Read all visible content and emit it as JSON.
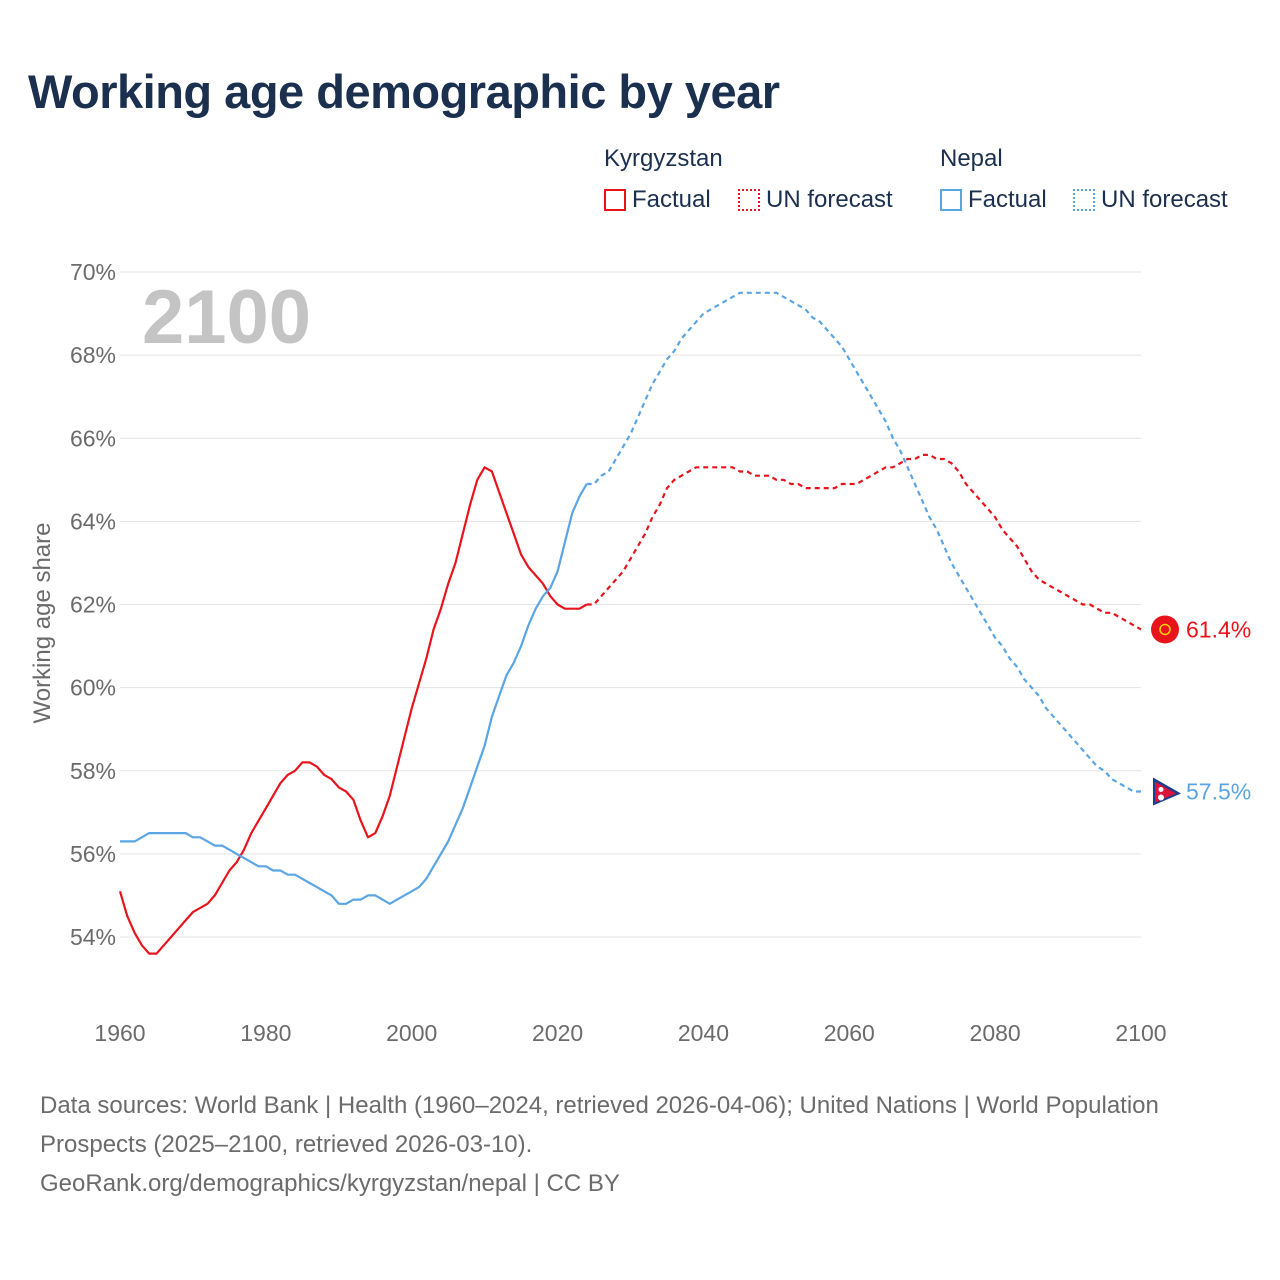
{
  "title": "Working age demographic by year",
  "legend": {
    "groups": [
      {
        "name": "Kyrgyzstan",
        "factual": "Factual",
        "forecast": "UN forecast",
        "color": "#e8141c"
      },
      {
        "name": "Nepal",
        "factual": "Factual",
        "forecast": "UN forecast",
        "color": "#5aa5e3"
      }
    ]
  },
  "year_watermark": "2100",
  "footer": {
    "sources": "Data sources: World Bank | Health (1960–2024, retrieved 2026-04-06); United Nations | World Population Prospects (2025–2100, retrieved 2026-03-10).",
    "credit": "GeoRank.org/demographics/kyrgyzstan/nepal | CC BY"
  },
  "chart_data": {
    "type": "line",
    "title": "Working age demographic by year",
    "xlabel": "",
    "ylabel": "Working age share",
    "xlim": [
      1960,
      2100
    ],
    "ylim": [
      53,
      70
    ],
    "x_ticks": [
      1960,
      1980,
      2000,
      2020,
      2040,
      2060,
      2080,
      2100
    ],
    "x_tick_labels": [
      "1960",
      "1980",
      "2000",
      "2020",
      "2040",
      "2060",
      "2080",
      "2100"
    ],
    "y_ticks": [
      54,
      56,
      58,
      60,
      62,
      64,
      66,
      68,
      70
    ],
    "y_tick_labels": [
      "54%",
      "56%",
      "58%",
      "60%",
      "62%",
      "64%",
      "66%",
      "68%",
      "70%"
    ],
    "grid": true,
    "factual_end_year": 2024,
    "series": [
      {
        "name": "Kyrgyzstan",
        "color": "#e8141c",
        "end_label": "61.4%",
        "points": [
          [
            1960,
            55.1
          ],
          [
            1961,
            54.5
          ],
          [
            1962,
            54.1
          ],
          [
            1963,
            53.8
          ],
          [
            1964,
            53.6
          ],
          [
            1965,
            53.6
          ],
          [
            1966,
            53.8
          ],
          [
            1967,
            54.0
          ],
          [
            1968,
            54.2
          ],
          [
            1969,
            54.4
          ],
          [
            1970,
            54.6
          ],
          [
            1971,
            54.7
          ],
          [
            1972,
            54.8
          ],
          [
            1973,
            55.0
          ],
          [
            1974,
            55.3
          ],
          [
            1975,
            55.6
          ],
          [
            1976,
            55.8
          ],
          [
            1977,
            56.1
          ],
          [
            1978,
            56.5
          ],
          [
            1979,
            56.8
          ],
          [
            1980,
            57.1
          ],
          [
            1981,
            57.4
          ],
          [
            1982,
            57.7
          ],
          [
            1983,
            57.9
          ],
          [
            1984,
            58.0
          ],
          [
            1985,
            58.2
          ],
          [
            1986,
            58.2
          ],
          [
            1987,
            58.1
          ],
          [
            1988,
            57.9
          ],
          [
            1989,
            57.8
          ],
          [
            1990,
            57.6
          ],
          [
            1991,
            57.5
          ],
          [
            1992,
            57.3
          ],
          [
            1993,
            56.8
          ],
          [
            1994,
            56.4
          ],
          [
            1995,
            56.5
          ],
          [
            1996,
            56.9
          ],
          [
            1997,
            57.4
          ],
          [
            1998,
            58.1
          ],
          [
            1999,
            58.8
          ],
          [
            2000,
            59.5
          ],
          [
            2001,
            60.1
          ],
          [
            2002,
            60.7
          ],
          [
            2003,
            61.4
          ],
          [
            2004,
            61.9
          ],
          [
            2005,
            62.5
          ],
          [
            2006,
            63.0
          ],
          [
            2007,
            63.7
          ],
          [
            2008,
            64.4
          ],
          [
            2009,
            65.0
          ],
          [
            2010,
            65.3
          ],
          [
            2011,
            65.2
          ],
          [
            2012,
            64.7
          ],
          [
            2013,
            64.2
          ],
          [
            2014,
            63.7
          ],
          [
            2015,
            63.2
          ],
          [
            2016,
            62.9
          ],
          [
            2017,
            62.7
          ],
          [
            2018,
            62.5
          ],
          [
            2019,
            62.2
          ],
          [
            2020,
            62.0
          ],
          [
            2021,
            61.9
          ],
          [
            2022,
            61.9
          ],
          [
            2023,
            61.9
          ],
          [
            2024,
            62.0
          ],
          [
            2025,
            62.0
          ],
          [
            2026,
            62.2
          ],
          [
            2027,
            62.4
          ],
          [
            2028,
            62.6
          ],
          [
            2029,
            62.8
          ],
          [
            2030,
            63.1
          ],
          [
            2031,
            63.4
          ],
          [
            2032,
            63.7
          ],
          [
            2033,
            64.1
          ],
          [
            2034,
            64.4
          ],
          [
            2035,
            64.8
          ],
          [
            2036,
            65.0
          ],
          [
            2037,
            65.1
          ],
          [
            2038,
            65.2
          ],
          [
            2039,
            65.3
          ],
          [
            2040,
            65.3
          ],
          [
            2041,
            65.3
          ],
          [
            2042,
            65.3
          ],
          [
            2043,
            65.3
          ],
          [
            2044,
            65.3
          ],
          [
            2045,
            65.2
          ],
          [
            2046,
            65.2
          ],
          [
            2047,
            65.1
          ],
          [
            2048,
            65.1
          ],
          [
            2049,
            65.1
          ],
          [
            2050,
            65.0
          ],
          [
            2051,
            65.0
          ],
          [
            2052,
            64.9
          ],
          [
            2053,
            64.9
          ],
          [
            2054,
            64.8
          ],
          [
            2055,
            64.8
          ],
          [
            2056,
            64.8
          ],
          [
            2057,
            64.8
          ],
          [
            2058,
            64.8
          ],
          [
            2059,
            64.9
          ],
          [
            2060,
            64.9
          ],
          [
            2061,
            64.9
          ],
          [
            2062,
            65.0
          ],
          [
            2063,
            65.1
          ],
          [
            2064,
            65.2
          ],
          [
            2065,
            65.3
          ],
          [
            2066,
            65.3
          ],
          [
            2067,
            65.4
          ],
          [
            2068,
            65.5
          ],
          [
            2069,
            65.5
          ],
          [
            2070,
            65.6
          ],
          [
            2071,
            65.6
          ],
          [
            2072,
            65.5
          ],
          [
            2073,
            65.5
          ],
          [
            2074,
            65.4
          ],
          [
            2075,
            65.2
          ],
          [
            2076,
            64.9
          ],
          [
            2077,
            64.7
          ],
          [
            2078,
            64.5
          ],
          [
            2079,
            64.3
          ],
          [
            2080,
            64.1
          ],
          [
            2081,
            63.8
          ],
          [
            2082,
            63.6
          ],
          [
            2083,
            63.4
          ],
          [
            2084,
            63.1
          ],
          [
            2085,
            62.8
          ],
          [
            2086,
            62.6
          ],
          [
            2087,
            62.5
          ],
          [
            2088,
            62.4
          ],
          [
            2089,
            62.3
          ],
          [
            2090,
            62.2
          ],
          [
            2091,
            62.1
          ],
          [
            2092,
            62.0
          ],
          [
            2093,
            62.0
          ],
          [
            2094,
            61.9
          ],
          [
            2095,
            61.8
          ],
          [
            2096,
            61.8
          ],
          [
            2097,
            61.7
          ],
          [
            2098,
            61.6
          ],
          [
            2099,
            61.5
          ],
          [
            2100,
            61.4
          ]
        ]
      },
      {
        "name": "Nepal",
        "color": "#5aa5e3",
        "end_label": "57.5%",
        "points": [
          [
            1960,
            56.3
          ],
          [
            1961,
            56.3
          ],
          [
            1962,
            56.3
          ],
          [
            1963,
            56.4
          ],
          [
            1964,
            56.5
          ],
          [
            1965,
            56.5
          ],
          [
            1966,
            56.5
          ],
          [
            1967,
            56.5
          ],
          [
            1968,
            56.5
          ],
          [
            1969,
            56.5
          ],
          [
            1970,
            56.4
          ],
          [
            1971,
            56.4
          ],
          [
            1972,
            56.3
          ],
          [
            1973,
            56.2
          ],
          [
            1974,
            56.2
          ],
          [
            1975,
            56.1
          ],
          [
            1976,
            56.0
          ],
          [
            1977,
            55.9
          ],
          [
            1978,
            55.8
          ],
          [
            1979,
            55.7
          ],
          [
            1980,
            55.7
          ],
          [
            1981,
            55.6
          ],
          [
            1982,
            55.6
          ],
          [
            1983,
            55.5
          ],
          [
            1984,
            55.5
          ],
          [
            1985,
            55.4
          ],
          [
            1986,
            55.3
          ],
          [
            1987,
            55.2
          ],
          [
            1988,
            55.1
          ],
          [
            1989,
            55.0
          ],
          [
            1990,
            54.8
          ],
          [
            1991,
            54.8
          ],
          [
            1992,
            54.9
          ],
          [
            1993,
            54.9
          ],
          [
            1994,
            55.0
          ],
          [
            1995,
            55.0
          ],
          [
            1996,
            54.9
          ],
          [
            1997,
            54.8
          ],
          [
            1998,
            54.9
          ],
          [
            1999,
            55.0
          ],
          [
            2000,
            55.1
          ],
          [
            2001,
            55.2
          ],
          [
            2002,
            55.4
          ],
          [
            2003,
            55.7
          ],
          [
            2004,
            56.0
          ],
          [
            2005,
            56.3
          ],
          [
            2006,
            56.7
          ],
          [
            2007,
            57.1
          ],
          [
            2008,
            57.6
          ],
          [
            2009,
            58.1
          ],
          [
            2010,
            58.6
          ],
          [
            2011,
            59.3
          ],
          [
            2012,
            59.8
          ],
          [
            2013,
            60.3
          ],
          [
            2014,
            60.6
          ],
          [
            2015,
            61.0
          ],
          [
            2016,
            61.5
          ],
          [
            2017,
            61.9
          ],
          [
            2018,
            62.2
          ],
          [
            2019,
            62.4
          ],
          [
            2020,
            62.8
          ],
          [
            2021,
            63.5
          ],
          [
            2022,
            64.2
          ],
          [
            2023,
            64.6
          ],
          [
            2024,
            64.9
          ],
          [
            2025,
            64.9
          ],
          [
            2026,
            65.1
          ],
          [
            2027,
            65.2
          ],
          [
            2028,
            65.5
          ],
          [
            2029,
            65.8
          ],
          [
            2030,
            66.1
          ],
          [
            2031,
            66.5
          ],
          [
            2032,
            66.9
          ],
          [
            2033,
            67.3
          ],
          [
            2034,
            67.6
          ],
          [
            2035,
            67.9
          ],
          [
            2036,
            68.1
          ],
          [
            2037,
            68.4
          ],
          [
            2038,
            68.6
          ],
          [
            2039,
            68.8
          ],
          [
            2040,
            69.0
          ],
          [
            2041,
            69.1
          ],
          [
            2042,
            69.2
          ],
          [
            2043,
            69.3
          ],
          [
            2044,
            69.4
          ],
          [
            2045,
            69.5
          ],
          [
            2046,
            69.5
          ],
          [
            2047,
            69.5
          ],
          [
            2048,
            69.5
          ],
          [
            2049,
            69.5
          ],
          [
            2050,
            69.5
          ],
          [
            2051,
            69.4
          ],
          [
            2052,
            69.3
          ],
          [
            2053,
            69.2
          ],
          [
            2054,
            69.1
          ],
          [
            2055,
            68.9
          ],
          [
            2056,
            68.8
          ],
          [
            2057,
            68.6
          ],
          [
            2058,
            68.4
          ],
          [
            2059,
            68.2
          ],
          [
            2060,
            67.9
          ],
          [
            2061,
            67.6
          ],
          [
            2062,
            67.3
          ],
          [
            2063,
            67.0
          ],
          [
            2064,
            66.7
          ],
          [
            2065,
            66.4
          ],
          [
            2066,
            66.0
          ],
          [
            2067,
            65.7
          ],
          [
            2068,
            65.3
          ],
          [
            2069,
            64.9
          ],
          [
            2070,
            64.5
          ],
          [
            2071,
            64.1
          ],
          [
            2072,
            63.8
          ],
          [
            2073,
            63.4
          ],
          [
            2074,
            63.0
          ],
          [
            2075,
            62.7
          ],
          [
            2076,
            62.4
          ],
          [
            2077,
            62.1
          ],
          [
            2078,
            61.8
          ],
          [
            2079,
            61.5
          ],
          [
            2080,
            61.2
          ],
          [
            2081,
            61.0
          ],
          [
            2082,
            60.7
          ],
          [
            2083,
            60.5
          ],
          [
            2084,
            60.2
          ],
          [
            2085,
            60.0
          ],
          [
            2086,
            59.8
          ],
          [
            2087,
            59.5
          ],
          [
            2088,
            59.3
          ],
          [
            2089,
            59.1
          ],
          [
            2090,
            58.9
          ],
          [
            2091,
            58.7
          ],
          [
            2092,
            58.5
          ],
          [
            2093,
            58.3
          ],
          [
            2094,
            58.1
          ],
          [
            2095,
            58.0
          ],
          [
            2096,
            57.8
          ],
          [
            2097,
            57.7
          ],
          [
            2098,
            57.6
          ],
          [
            2099,
            57.5
          ],
          [
            2100,
            57.5
          ]
        ]
      }
    ]
  }
}
